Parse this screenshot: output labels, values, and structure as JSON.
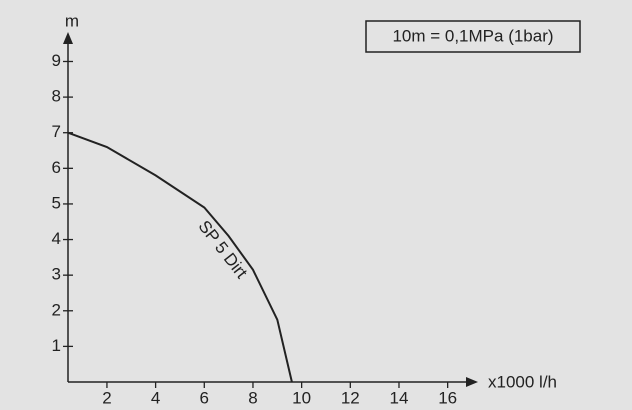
{
  "chart_data": {
    "type": "line",
    "y_label": "m",
    "x_label": "x1000 l/h",
    "annotation": "10m = 0,1MPa (1bar)",
    "x": [
      0.4,
      2,
      4,
      6,
      7,
      8,
      9,
      9.6
    ],
    "series": [
      {
        "name": "SP 5 Dirt",
        "color": "#222222",
        "values": [
          7,
          6.6,
          5.8,
          4.9,
          4.1,
          3.15,
          1.75,
          0
        ]
      }
    ],
    "xlim": [
      0.4,
      17
    ],
    "ylim": [
      0,
      9.8
    ],
    "xticks": [
      2,
      4,
      6,
      8,
      10,
      12,
      14,
      16
    ],
    "yticks": [
      1,
      2,
      3,
      4,
      5,
      6,
      7,
      8,
      9
    ]
  }
}
